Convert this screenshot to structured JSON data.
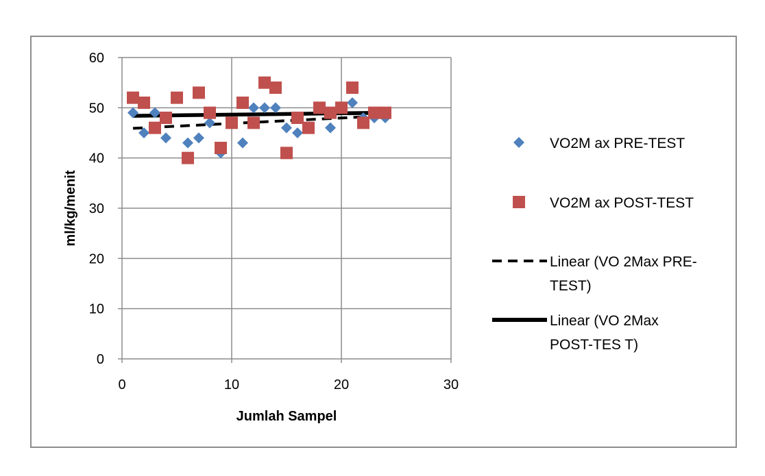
{
  "chart_data": {
    "type": "scatter",
    "xlabel": "Jumlah Sampel",
    "ylabel": "ml/kg/menit",
    "xlim": [
      0,
      30
    ],
    "ylim": [
      0,
      60
    ],
    "x_ticks": [
      0,
      10,
      20,
      30
    ],
    "y_ticks": [
      0,
      10,
      20,
      30,
      40,
      50,
      60
    ],
    "grid": true,
    "legend_position": "right",
    "series": [
      {
        "name": "VO2Max PRE-TEST",
        "marker": "diamond",
        "color": "#4f81bd",
        "x": [
          1,
          2,
          3,
          4,
          5,
          6,
          7,
          8,
          9,
          10,
          11,
          12,
          13,
          14,
          15,
          16,
          17,
          18,
          19,
          20,
          21,
          22,
          23,
          24
        ],
        "y": [
          49,
          45,
          49,
          44,
          52,
          43,
          44,
          47,
          41,
          47,
          43,
          50,
          50,
          50,
          46,
          45,
          46,
          50,
          46,
          50,
          51,
          48,
          48,
          48
        ]
      },
      {
        "name": "VO2Max POST-TEST",
        "marker": "square",
        "color": "#c0504d",
        "x": [
          1,
          2,
          3,
          4,
          5,
          6,
          7,
          8,
          9,
          10,
          11,
          12,
          13,
          14,
          15,
          16,
          17,
          18,
          19,
          20,
          21,
          22,
          23,
          24
        ],
        "y": [
          52,
          51,
          46,
          48,
          52,
          40,
          53,
          49,
          42,
          47,
          51,
          47,
          55,
          54,
          41,
          48,
          46,
          50,
          49,
          50,
          54,
          47,
          49,
          49
        ]
      }
    ],
    "trendlines": [
      {
        "name": "Linear (VO2Max PRE-TEST)",
        "style": "dashed",
        "color": "#000000",
        "x": [
          1,
          24
        ],
        "y": [
          45.9,
          48.4
        ]
      },
      {
        "name": "Linear (VO2Max POST-TEST)",
        "style": "solid",
        "color": "#000000",
        "x": [
          1,
          24
        ],
        "y": [
          48.4,
          49.0
        ]
      }
    ],
    "legend": [
      {
        "label_lines": [
          "VO2M ax PRE-TEST"
        ],
        "marker": "diamond",
        "color": "#4f81bd"
      },
      {
        "label_lines": [
          "VO2M ax POST-TEST"
        ],
        "marker": "square",
        "color": "#c0504d"
      },
      {
        "label_lines": [
          "Linear (VO 2Max PRE-",
          "TEST)"
        ],
        "marker": "dashed-line",
        "color": "#000000"
      },
      {
        "label_lines": [
          "Linear (VO 2Max",
          "POST-TES T)"
        ],
        "marker": "solid-line",
        "color": "#000000"
      }
    ]
  }
}
